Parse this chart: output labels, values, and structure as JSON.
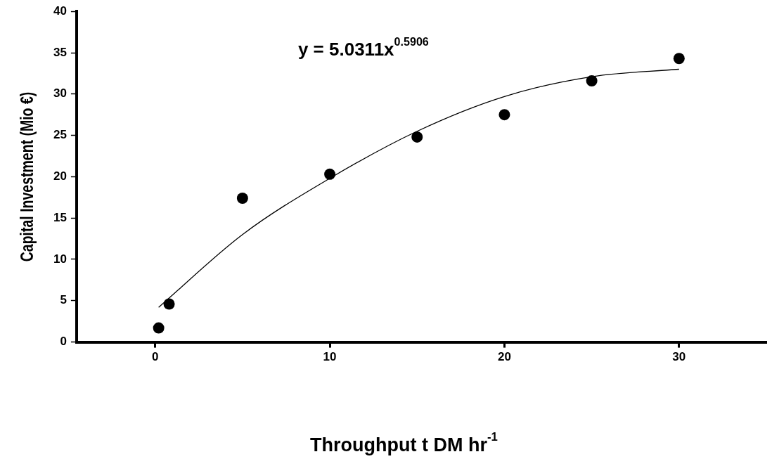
{
  "chart_data": {
    "type": "scatter",
    "xlabel": "Throughput t DM hr$^{-1}$",
    "ylabel": "Capital Investment (Mio €)",
    "annotations": [
      "y = 5.0311x$^{0.5906}$"
    ],
    "xlim": [
      -4.5,
      35
    ],
    "xticks": [
      0,
      10,
      20,
      30
    ],
    "ylim": [
      0,
      40
    ],
    "yticks": [
      0,
      5,
      10,
      15,
      20,
      25,
      30,
      35,
      40
    ],
    "marker": "circle",
    "series": [
      {
        "color": "#000000",
        "x": [
          0.2,
          0.8,
          5,
          10,
          15,
          20,
          25,
          30
        ],
        "values": [
          1.7,
          4.6,
          17.4,
          20.3,
          24.8,
          27.5,
          31.6,
          34.3
        ]
      },
      {
        "type": "line",
        "color": "#000000",
        "marker": "none",
        "x": [
          0.2,
          5,
          10,
          15,
          20,
          25,
          30
        ],
        "values": [
          4.2,
          13.0,
          19.8,
          25.5,
          29.7,
          32.1,
          33.0
        ]
      }
    ]
  }
}
